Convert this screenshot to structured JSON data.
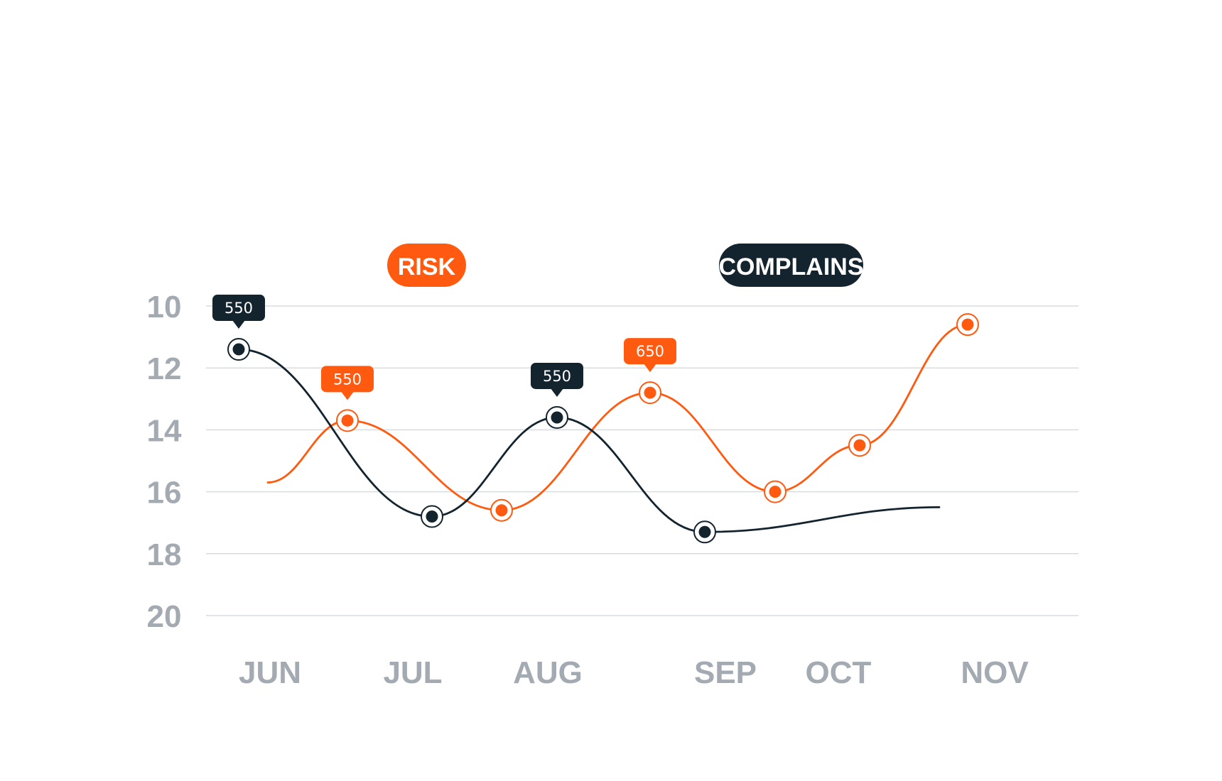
{
  "chart_data": {
    "type": "line",
    "y_ticks": [
      "10",
      "12",
      "14",
      "16",
      "18",
      "20"
    ],
    "ylim": [
      10,
      20
    ],
    "y_inverted": true,
    "grid": true,
    "x_ticks": [
      "JUN",
      "JUL",
      "AUG",
      "SEP",
      "OCT",
      "NOV"
    ],
    "legend_placement": "top",
    "series": [
      {
        "name": "RISK",
        "color": "#ff5a0f",
        "curve_start": 15.7,
        "points": [
          {
            "x": "JUN–JUL",
            "y": 13.7,
            "label": "550"
          },
          {
            "x": "JUL–AUG",
            "y": 16.6
          },
          {
            "x": "AUG–SEP",
            "y": 12.8,
            "label": "650"
          },
          {
            "x": "SEP–OCT",
            "y": 16.0
          },
          {
            "x": "OCT",
            "y": 14.5
          },
          {
            "x": "NOV",
            "y": 10.6
          }
        ]
      },
      {
        "name": "COMPLAINS",
        "color": "#13242f",
        "curve_end": 16.5,
        "points": [
          {
            "x": "JUN",
            "y": 11.4,
            "label": "550"
          },
          {
            "x": "JUL",
            "y": 16.8
          },
          {
            "x": "AUG",
            "y": 13.6,
            "label": "550"
          },
          {
            "x": "SEP",
            "y": 17.3
          }
        ]
      }
    ]
  }
}
